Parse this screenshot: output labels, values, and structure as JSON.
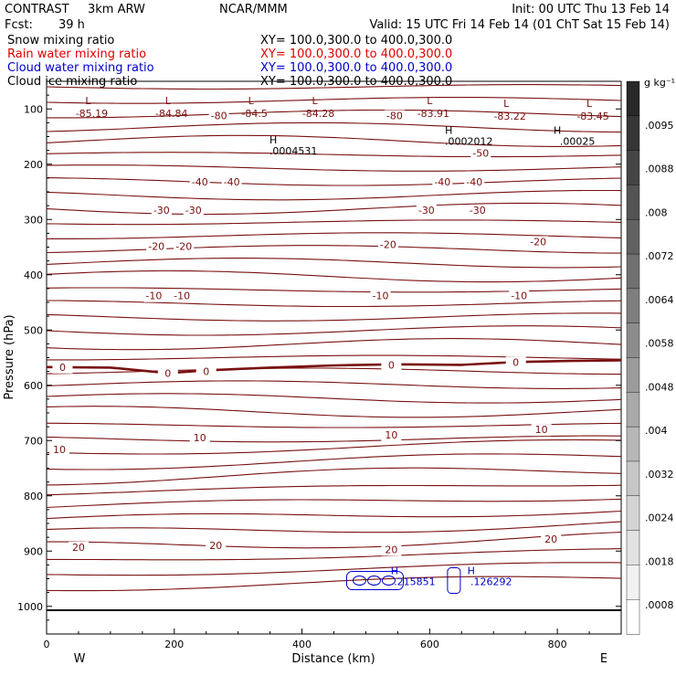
{
  "header": {
    "model_name": "CONTRAST",
    "resolution": "3km ARW",
    "org": "NCAR/MMM",
    "init": "Init: 00 UTC Thu 13 Feb 14",
    "fcst_label": "Fcst:",
    "fcst_value": "39 h",
    "valid": "Valid: 15 UTC Fri 14 Feb 14 (01 ChT Sat 15 Feb 14)"
  },
  "fields": [
    {
      "name": "Snow mixing ratio",
      "xy": "XY= 100.0,300.0 to 400.0,300.0",
      "color": "#000000"
    },
    {
      "name": "Rain water mixing ratio",
      "xy": "XY= 100.0,300.0 to 400.0,300.0",
      "color": "#e00000"
    },
    {
      "name": "Cloud water mixing ratio",
      "xy": "XY= 100.0,300.0 to 400.0,300.0",
      "color": "#0000cc"
    },
    {
      "name": "Cloud ice mixing ratio",
      "xy": "XY= 100.0,300.0 to 400.0,300.0",
      "color": "#000000"
    }
  ],
  "colorbar": {
    "unit": "g kg⁻¹",
    "labels": [
      ".0095",
      ".0088",
      ".008",
      ".0072",
      ".0064",
      ".0058",
      ".0048",
      ".004",
      ".0032",
      ".0024",
      ".0018",
      ".0008"
    ]
  },
  "chart_data": {
    "type": "contour",
    "xlabel": "Distance (km)",
    "ylabel": "Pressure (hPa)",
    "xlim": [
      0,
      900
    ],
    "ylim": [
      1050,
      50
    ],
    "x_ticks": [
      0,
      200,
      400,
      600,
      800
    ],
    "y_ticks": [
      100,
      200,
      300,
      400,
      500,
      600,
      700,
      800,
      900,
      1000
    ],
    "x_end_labels": {
      "left": "W",
      "right": "E"
    },
    "temperature_contours": [
      {
        "value": -80,
        "labels": [
          {
            "x": 270,
            "p": 112,
            "text": "-80"
          },
          {
            "x": 545,
            "p": 112,
            "text": "-80"
          }
        ]
      },
      {
        "value": -50,
        "labels": [
          {
            "x": 680,
            "p": 180,
            "text": "-50"
          }
        ]
      },
      {
        "value": -40,
        "labels": [
          {
            "x": 240,
            "p": 232,
            "text": "-40"
          },
          {
            "x": 290,
            "p": 232,
            "text": "-40"
          },
          {
            "x": 620,
            "p": 232,
            "text": "-40"
          },
          {
            "x": 670,
            "p": 232,
            "text": "-40"
          }
        ]
      },
      {
        "value": -30,
        "labels": [
          {
            "x": 180,
            "p": 283,
            "text": "-30"
          },
          {
            "x": 230,
            "p": 283,
            "text": "-30"
          },
          {
            "x": 595,
            "p": 283,
            "text": "-30"
          },
          {
            "x": 675,
            "p": 283,
            "text": "-30"
          }
        ]
      },
      {
        "value": -20,
        "labels": [
          {
            "x": 172,
            "p": 348,
            "text": "-20"
          },
          {
            "x": 215,
            "p": 348,
            "text": "-20"
          },
          {
            "x": 535,
            "p": 345,
            "text": "-20"
          },
          {
            "x": 770,
            "p": 340,
            "text": "-20"
          }
        ]
      },
      {
        "value": -10,
        "labels": [
          {
            "x": 168,
            "p": 438,
            "text": "-10"
          },
          {
            "x": 212,
            "p": 438,
            "text": "-10"
          },
          {
            "x": 523,
            "p": 438,
            "text": "-10"
          },
          {
            "x": 740,
            "p": 438,
            "text": "-10"
          }
        ]
      },
      {
        "value": 0,
        "labels": [
          {
            "x": 25,
            "p": 567,
            "text": "0"
          },
          {
            "x": 190,
            "p": 578,
            "text": "0"
          },
          {
            "x": 250,
            "p": 575,
            "text": "0"
          },
          {
            "x": 540,
            "p": 563,
            "text": "0"
          },
          {
            "x": 735,
            "p": 558,
            "text": "0"
          }
        ]
      },
      {
        "value": 10,
        "labels": [
          {
            "x": 20,
            "p": 716,
            "text": "10"
          },
          {
            "x": 240,
            "p": 695,
            "text": "10"
          },
          {
            "x": 540,
            "p": 690,
            "text": "10"
          },
          {
            "x": 775,
            "p": 680,
            "text": "10"
          }
        ]
      },
      {
        "value": 20,
        "labels": [
          {
            "x": 50,
            "p": 893,
            "text": "20"
          },
          {
            "x": 265,
            "p": 890,
            "text": "20"
          },
          {
            "x": 540,
            "p": 897,
            "text": "20"
          },
          {
            "x": 790,
            "p": 878,
            "text": "20"
          }
        ]
      }
    ],
    "minima": [
      {
        "x": 65,
        "p": 75,
        "value": -85.19
      },
      {
        "x": 190,
        "p": 75,
        "value": -84.84
      },
      {
        "x": 320,
        "p": 75,
        "value": -84.5
      },
      {
        "x": 420,
        "p": 75,
        "value": -84.28
      },
      {
        "x": 600,
        "p": 75,
        "value": -83.91
      },
      {
        "x": 720,
        "p": 80,
        "value": -83.22
      },
      {
        "x": 850,
        "p": 80,
        "value": -83.45
      }
    ],
    "maxima": [
      {
        "x": 355,
        "p": 162,
        "value": ".0004531"
      },
      {
        "x": 630,
        "p": 145,
        "value": ".0002012"
      },
      {
        "x": 800,
        "p": 145,
        "value": ".00025"
      },
      {
        "x": 545,
        "p": 942,
        "value": ".215851"
      },
      {
        "x": 665,
        "p": 942,
        "value": ".126292"
      }
    ]
  }
}
